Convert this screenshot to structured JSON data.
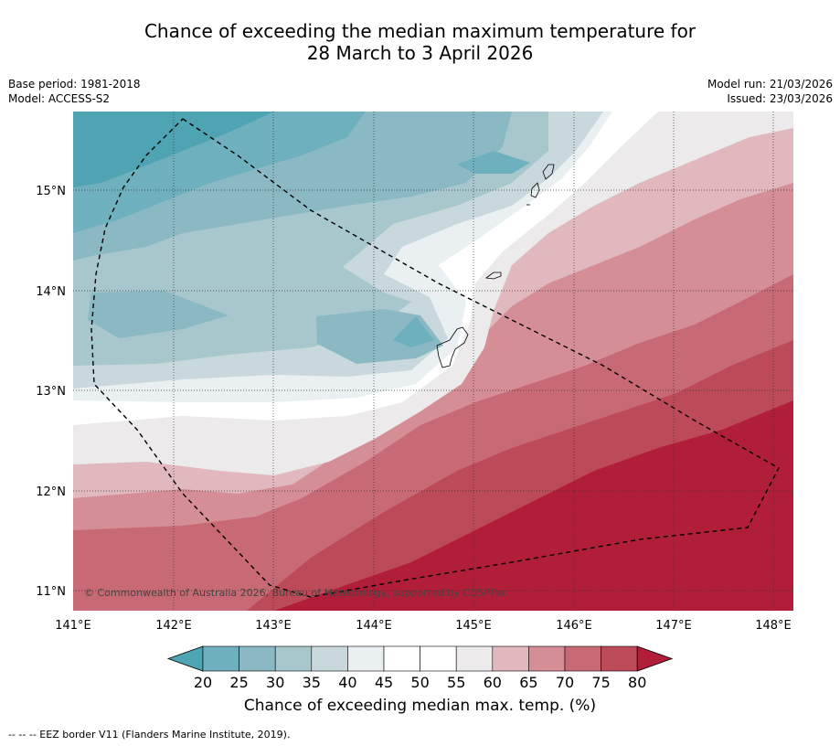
{
  "title": {
    "line1": "Chance of exceeding the median maximum temperature for",
    "line2": "28 March to 3 April 2026"
  },
  "meta_left": {
    "base_period": "Base period: 1981-2018",
    "model": "Model: ACCESS-S2"
  },
  "meta_right": {
    "model_run": "Model run: 21/03/2026",
    "issued": "Issued: 23/03/2026"
  },
  "copyright": "© Commonwealth of Australia 2026, Bureau of Meteorology, supported by COSPPac",
  "footer": "-- -- -- EEZ border V11 (Flanders Marine Institute, 2019).",
  "colorbar": {
    "label": "Chance of exceeding median max. temp. (%)",
    "ticks": [
      "20",
      "25",
      "30",
      "35",
      "40",
      "45",
      "50",
      "55",
      "60",
      "65",
      "70",
      "75",
      "80"
    ],
    "colors": [
      "#4fa4b3",
      "#6eb0bd",
      "#8ab9c4",
      "#a8c7cc",
      "#c9d8dc",
      "#eaf0f1",
      "#ffffff",
      "#ffffff",
      "#eceaeb",
      "#e0b8bd",
      "#d58d96",
      "#c86a75",
      "#bd4a58",
      "#b01e3a"
    ]
  },
  "map": {
    "lon_ticks": [
      "141°E",
      "142°E",
      "143°E",
      "144°E",
      "145°E",
      "146°E",
      "147°E",
      "148°E"
    ],
    "lat_ticks": [
      "15°N",
      "14°N",
      "13°N",
      "12°N",
      "11°N"
    ]
  }
}
